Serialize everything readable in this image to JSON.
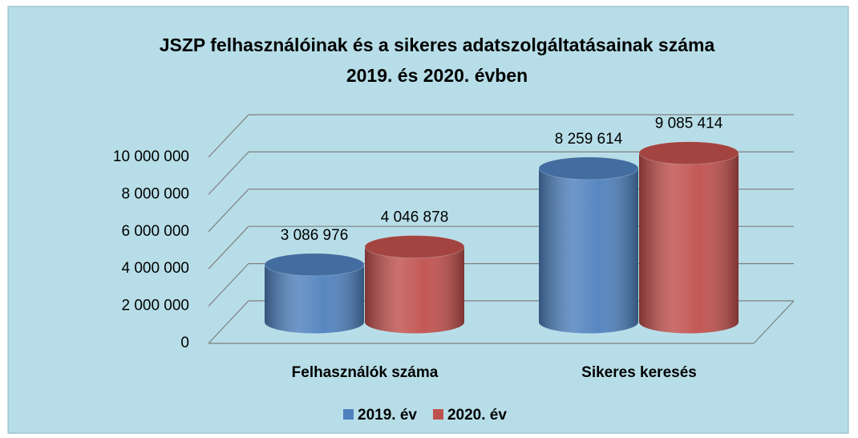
{
  "chart_data": {
    "type": "bar3d",
    "title": [
      "JSZP felhasználóinak és a sikeres adatszolgáltatásainak száma",
      "2019. és 2020. évben"
    ],
    "categories": [
      "Felhasználók száma",
      "Sikeres keresés"
    ],
    "series": [
      {
        "name": "2019. év",
        "color": "#4f81bd",
        "values": [
          3086976,
          8259614
        ],
        "value_labels": [
          "3 086 976",
          "8 259 614"
        ]
      },
      {
        "name": "2020. év",
        "color": "#c0504d",
        "values": [
          4046878,
          9085414
        ],
        "value_labels": [
          "4 046 878",
          "9 085 414"
        ]
      }
    ],
    "ylim": [
      0,
      10000000
    ],
    "yticks": [
      0,
      {
        "value": 2000000,
        "label": "2 000 000"
      },
      {
        "value": 4000000,
        "label": "4 000 000"
      },
      {
        "value": 6000000,
        "label": "6 000 000"
      },
      {
        "value": 8000000,
        "label": "8 000 000"
      },
      {
        "value": 10000000,
        "label": "10 000 000"
      }
    ],
    "grid": true,
    "legend": "bottom"
  }
}
